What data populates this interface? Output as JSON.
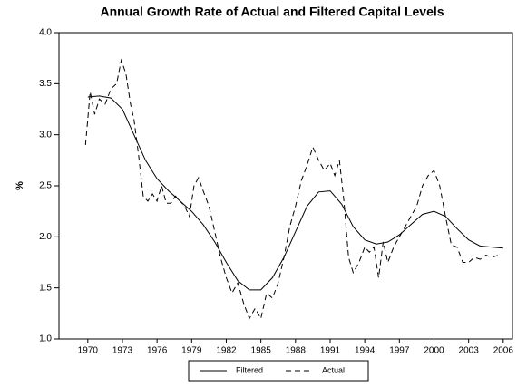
{
  "chart_data": {
    "type": "line",
    "title": "Annual Growth Rate of Actual and Filtered Capital Levels",
    "ylabel": "%",
    "xlim": [
      1967.5,
      2006.8
    ],
    "xticks": [
      1970,
      1973,
      1976,
      1979,
      1982,
      1985,
      1988,
      1991,
      1994,
      1997,
      2000,
      2003,
      2006
    ],
    "ylim": [
      1.0,
      4.0
    ],
    "yticks": [
      {
        "value": 1.0,
        "label": "1.0"
      },
      1.5,
      {
        "value": 2.0,
        "label": "2.0"
      },
      2.5,
      {
        "value": 3.0,
        "label": "3.0"
      },
      3.5,
      {
        "value": 4.0,
        "label": "4.0"
      }
    ],
    "legend": "bottom",
    "series": [
      {
        "name": "Filtered",
        "color": "#000000",
        "line_style": "solid",
        "x": [
          1970,
          1971,
          1972,
          1973,
          1974,
          1975,
          1976,
          1977,
          1978,
          1979,
          1980,
          1981,
          1982,
          1983,
          1984,
          1985,
          1986,
          1987,
          1988,
          1989,
          1990,
          1991,
          1992,
          1993,
          1994,
          1995,
          1996,
          1997,
          1998,
          1999,
          2000,
          2001,
          2002,
          2003,
          2004,
          2005,
          2006
        ],
        "values": [
          3.37,
          3.38,
          3.36,
          3.25,
          3.0,
          2.75,
          2.57,
          2.45,
          2.35,
          2.25,
          2.12,
          1.95,
          1.75,
          1.57,
          1.48,
          1.48,
          1.6,
          1.8,
          2.05,
          2.3,
          2.44,
          2.45,
          2.32,
          2.1,
          1.97,
          1.93,
          1.95,
          2.02,
          2.12,
          2.22,
          2.25,
          2.2,
          2.08,
          1.97,
          1.91,
          1.9,
          1.89
        ]
      },
      {
        "name": "Actual",
        "color": "#000000",
        "line_style": "dashed",
        "x": [
          1969.8,
          1970.2,
          1970.6,
          1971,
          1971.5,
          1972,
          1972.5,
          1972.9,
          1973.3,
          1973.7,
          1974,
          1974.4,
          1974.8,
          1975.2,
          1975.6,
          1976,
          1976.4,
          1976.8,
          1977.2,
          1977.6,
          1978,
          1978.4,
          1978.8,
          1979.2,
          1979.6,
          1980,
          1980.5,
          1981,
          1981.5,
          1982,
          1982.5,
          1983,
          1983.5,
          1984,
          1984.5,
          1985,
          1985.5,
          1986,
          1986.5,
          1987,
          1987.5,
          1988,
          1988.5,
          1989,
          1989.5,
          1990,
          1990.5,
          1991,
          1991.4,
          1991.8,
          1992.2,
          1992.6,
          1993,
          1993.5,
          1994,
          1994.4,
          1994.8,
          1995.2,
          1995.6,
          1996,
          1996.5,
          1997,
          1997.5,
          1998,
          1998.5,
          1999,
          1999.5,
          2000,
          2000.5,
          2001,
          2001.5,
          2002,
          2002.5,
          2003,
          2003.5,
          2004,
          2004.5,
          2005,
          2005.6
        ],
        "values": [
          2.9,
          3.42,
          3.2,
          3.35,
          3.3,
          3.45,
          3.5,
          3.73,
          3.6,
          3.3,
          3.15,
          2.8,
          2.4,
          2.35,
          2.42,
          2.35,
          2.5,
          2.33,
          2.33,
          2.4,
          2.35,
          2.3,
          2.2,
          2.5,
          2.58,
          2.45,
          2.3,
          2.05,
          1.8,
          1.6,
          1.45,
          1.55,
          1.35,
          1.2,
          1.3,
          1.2,
          1.45,
          1.4,
          1.55,
          1.8,
          2.1,
          2.3,
          2.55,
          2.7,
          2.88,
          2.75,
          2.65,
          2.72,
          2.6,
          2.75,
          2.35,
          1.8,
          1.65,
          1.75,
          1.9,
          1.85,
          1.9,
          1.6,
          1.95,
          1.75,
          1.9,
          2.0,
          2.1,
          2.2,
          2.3,
          2.5,
          2.6,
          2.65,
          2.5,
          2.2,
          1.92,
          1.9,
          1.75,
          1.75,
          1.8,
          1.78,
          1.82,
          1.8,
          1.82
        ]
      }
    ]
  }
}
